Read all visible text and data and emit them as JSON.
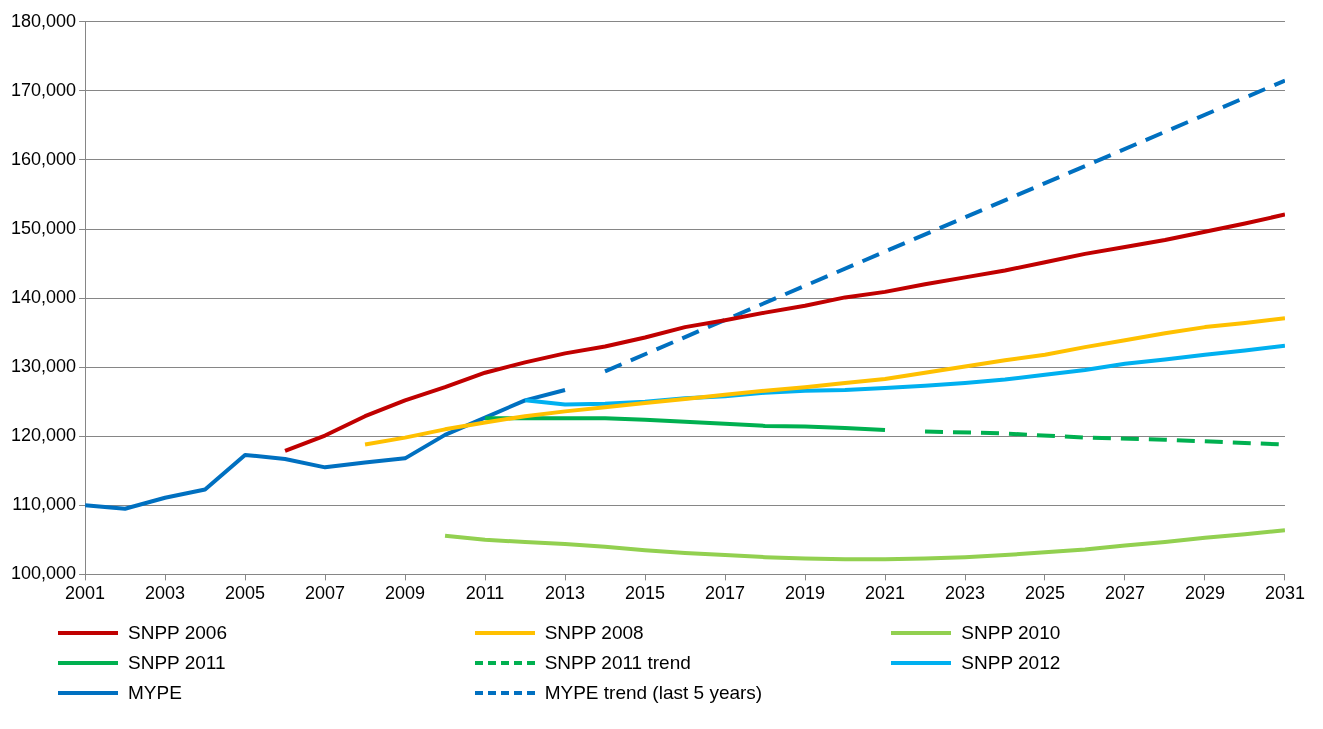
{
  "chart_data": {
    "type": "line",
    "xlim": [
      2001,
      2031
    ],
    "xticks": [
      2001,
      2003,
      2005,
      2007,
      2009,
      2011,
      2013,
      2015,
      2017,
      2019,
      2021,
      2023,
      2025,
      2027,
      2029,
      2031
    ],
    "ylim": [
      100000,
      180000
    ],
    "yticks": [
      {
        "value": 100000,
        "label": "100,000"
      },
      {
        "value": 110000,
        "label": "110,000"
      },
      {
        "value": 120000,
        "label": "120,000"
      },
      {
        "value": 130000,
        "label": "130,000"
      },
      {
        "value": 140000,
        "label": "140,000"
      },
      {
        "value": 150000,
        "label": "150,000"
      },
      {
        "value": 160000,
        "label": "160,000"
      },
      {
        "value": 170000,
        "label": "170,000"
      },
      {
        "value": 180000,
        "label": "180,000"
      }
    ],
    "grid": "y",
    "legend": "bottom",
    "marker": "none",
    "series": [
      {
        "name": "SNPP 2006",
        "color": "#c00000",
        "line_style": "solid",
        "x": [
          2006,
          2007,
          2008,
          2009,
          2010,
          2011,
          2012,
          2013,
          2014,
          2015,
          2016,
          2017,
          2018,
          2019,
          2020,
          2021,
          2022,
          2023,
          2024,
          2025,
          2026,
          2027,
          2028,
          2029,
          2030,
          2031
        ],
        "values": [
          117900,
          120100,
          122900,
          125200,
          127100,
          129200,
          130700,
          132000,
          133000,
          134300,
          135800,
          136800,
          137900,
          138900,
          140100,
          140900,
          142000,
          143000,
          144000,
          145200,
          146400,
          147400,
          148400,
          149600,
          150800,
          152100
        ]
      },
      {
        "name": "SNPP 2008",
        "color": "#ffc000",
        "line_style": "solid",
        "x": [
          2008,
          2009,
          2010,
          2011,
          2012,
          2013,
          2014,
          2015,
          2016,
          2017,
          2018,
          2019,
          2020,
          2021,
          2022,
          2023,
          2024,
          2025,
          2026,
          2027,
          2028,
          2029,
          2030,
          2031
        ],
        "values": [
          118800,
          119800,
          121000,
          122000,
          122900,
          123600,
          124200,
          124800,
          125400,
          126000,
          126600,
          127100,
          127700,
          128300,
          129200,
          130100,
          131000,
          131800,
          132900,
          133900,
          134900,
          135800,
          136400,
          137100
        ]
      },
      {
        "name": "SNPP 2010",
        "color": "#92d050",
        "line_style": "solid",
        "x": [
          2010,
          2011,
          2012,
          2013,
          2014,
          2015,
          2016,
          2017,
          2018,
          2019,
          2020,
          2021,
          2022,
          2023,
          2024,
          2025,
          2026,
          2027,
          2028,
          2029,
          2030,
          2031
        ],
        "values": [
          105600,
          105000,
          104700,
          104400,
          104000,
          103500,
          103100,
          102800,
          102500,
          102300,
          102200,
          102200,
          102300,
          102500,
          102800,
          103200,
          103600,
          104200,
          104700,
          105300,
          105800,
          106400
        ]
      },
      {
        "name": "SNPP 2011",
        "color": "#00b050",
        "line_style": "solid",
        "x": [
          2011,
          2012,
          2013,
          2014,
          2015,
          2016,
          2017,
          2018,
          2019,
          2020,
          2021
        ],
        "values": [
          122600,
          122600,
          122600,
          122600,
          122400,
          122100,
          121800,
          121500,
          121400,
          121200,
          120900
        ]
      },
      {
        "name": "SNPP 2011 trend",
        "color": "#00b050",
        "line_style": "dashed",
        "x": [
          2022,
          2024,
          2026,
          2028,
          2031
        ],
        "values": [
          120700,
          120400,
          119800,
          119500,
          118800
        ]
      },
      {
        "name": "SNPP 2012",
        "color": "#00b0f0",
        "line_style": "solid",
        "x": [
          2012,
          2013,
          2014,
          2015,
          2016,
          2017,
          2018,
          2019,
          2020,
          2021,
          2022,
          2023,
          2024,
          2025,
          2026,
          2027,
          2028,
          2029,
          2030,
          2031
        ],
        "values": [
          125200,
          124600,
          124700,
          125000,
          125500,
          125800,
          126300,
          126600,
          126700,
          127000,
          127300,
          127700,
          128200,
          128900,
          129600,
          130500,
          131100,
          131800,
          132400,
          133100
        ]
      },
      {
        "name": "MYPE",
        "color": "#0070c0",
        "line_style": "solid",
        "x": [
          2001,
          2002,
          2003,
          2004,
          2005,
          2006,
          2007,
          2008,
          2009,
          2010,
          2011,
          2012,
          2013
        ],
        "values": [
          110000,
          109500,
          111100,
          112300,
          117300,
          116700,
          115500,
          116200,
          116800,
          120200,
          122700,
          125200,
          126700
        ]
      },
      {
        "name": "MYPE trend (last 5 years)",
        "color": "#0070c0",
        "line_style": "dashed",
        "x": [
          2014,
          2031
        ],
        "values": [
          129400,
          171500
        ]
      }
    ]
  }
}
